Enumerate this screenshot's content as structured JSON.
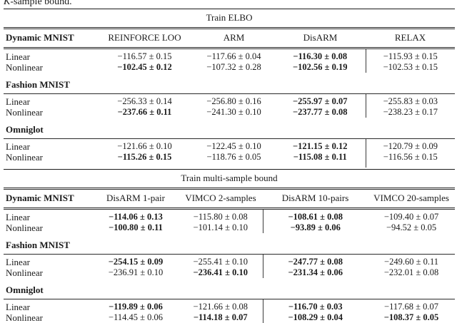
{
  "colors": {
    "text": "#1b1b1b",
    "rule": "#1a1a1a",
    "background": "#ffffff"
  },
  "caption": {
    "k": "K",
    "rest": "-sample bound."
  },
  "tables": [
    {
      "title": "Train ELBO",
      "header": [
        "Dynamic MNIST",
        "REINFORCE LOO",
        "ARM",
        "DisARM",
        "RELAX"
      ],
      "separator_value_index": 3,
      "sections": [
        {
          "label": null,
          "rows": [
            {
              "label": "Linear",
              "values": [
                "−116.57 ± 0.15",
                "−117.66 ± 0.04",
                "−116.30 ± 0.08",
                "−115.93 ± 0.15"
              ],
              "bold": [
                false,
                false,
                true,
                false
              ]
            },
            {
              "label": "Nonlinear",
              "values": [
                "−102.45 ± 0.12",
                "−107.32 ± 0.28",
                "−102.56 ± 0.19",
                "−102.53 ± 0.15"
              ],
              "bold": [
                true,
                false,
                true,
                false
              ]
            }
          ]
        },
        {
          "label": "Fashion MNIST",
          "rows": [
            {
              "label": "Linear",
              "values": [
                "−256.33 ± 0.14",
                "−256.80 ± 0.16",
                "−255.97 ± 0.07",
                "−255.83 ± 0.03"
              ],
              "bold": [
                false,
                false,
                true,
                false
              ]
            },
            {
              "label": "Nonlinear",
              "values": [
                "−237.66 ± 0.11",
                "−241.30 ± 0.10",
                "−237.77 ± 0.08",
                "−238.23 ± 0.17"
              ],
              "bold": [
                true,
                false,
                true,
                false
              ]
            }
          ]
        },
        {
          "label": "Omniglot",
          "rows": [
            {
              "label": "Linear",
              "values": [
                "−121.66 ± 0.10",
                "−122.45 ± 0.10",
                "−121.15 ± 0.12",
                "−120.79 ± 0.09"
              ],
              "bold": [
                false,
                false,
                true,
                false
              ]
            },
            {
              "label": "Nonlinear",
              "values": [
                "−115.26 ± 0.15",
                "−118.76 ± 0.05",
                "−115.08 ± 0.11",
                "−116.56 ± 0.15"
              ],
              "bold": [
                true,
                false,
                true,
                false
              ]
            }
          ]
        }
      ]
    },
    {
      "title": "Train multi-sample bound",
      "header": [
        "Dynamic MNIST",
        "DisARM 1-pair",
        "VIMCO 2-samples",
        "DisARM 10-pairs",
        "VIMCO 20-samples"
      ],
      "separator_value_index": 2,
      "sections": [
        {
          "label": null,
          "rows": [
            {
              "label": "Linear",
              "values": [
                "−114.06 ± 0.13",
                "−115.80 ± 0.08",
                "−108.61 ± 0.08",
                "−109.40 ± 0.07"
              ],
              "bold": [
                true,
                false,
                true,
                false
              ]
            },
            {
              "label": "Nonlinear",
              "values": [
                "−100.80 ± 0.11",
                "−101.14 ± 0.10",
                "−93.89 ± 0.06",
                "−94.52 ± 0.05"
              ],
              "bold": [
                true,
                false,
                true,
                false
              ]
            }
          ]
        },
        {
          "label": "Fashion MNIST",
          "rows": [
            {
              "label": "Linear",
              "values": [
                "−254.15 ± 0.09",
                "−255.41 ± 0.10",
                "−247.77 ± 0.08",
                "−249.60 ± 0.11"
              ],
              "bold": [
                true,
                false,
                true,
                false
              ]
            },
            {
              "label": "Nonlinear",
              "values": [
                "−236.91 ± 0.10",
                "−236.41 ± 0.10",
                "−231.34 ± 0.06",
                "−232.01 ± 0.08"
              ],
              "bold": [
                false,
                true,
                true,
                false
              ]
            }
          ]
        },
        {
          "label": "Omniglot",
          "rows": [
            {
              "label": "Linear",
              "values": [
                "−119.89 ± 0.06",
                "−121.66 ± 0.08",
                "−116.70 ± 0.03",
                "−117.68 ± 0.07"
              ],
              "bold": [
                true,
                false,
                true,
                false
              ]
            },
            {
              "label": "Nonlinear",
              "values": [
                "−114.45 ± 0.06",
                "−114.18 ± 0.07",
                "−108.29 ± 0.04",
                "−108.37 ± 0.05"
              ],
              "bold": [
                false,
                true,
                true,
                true
              ]
            }
          ]
        }
      ]
    }
  ]
}
